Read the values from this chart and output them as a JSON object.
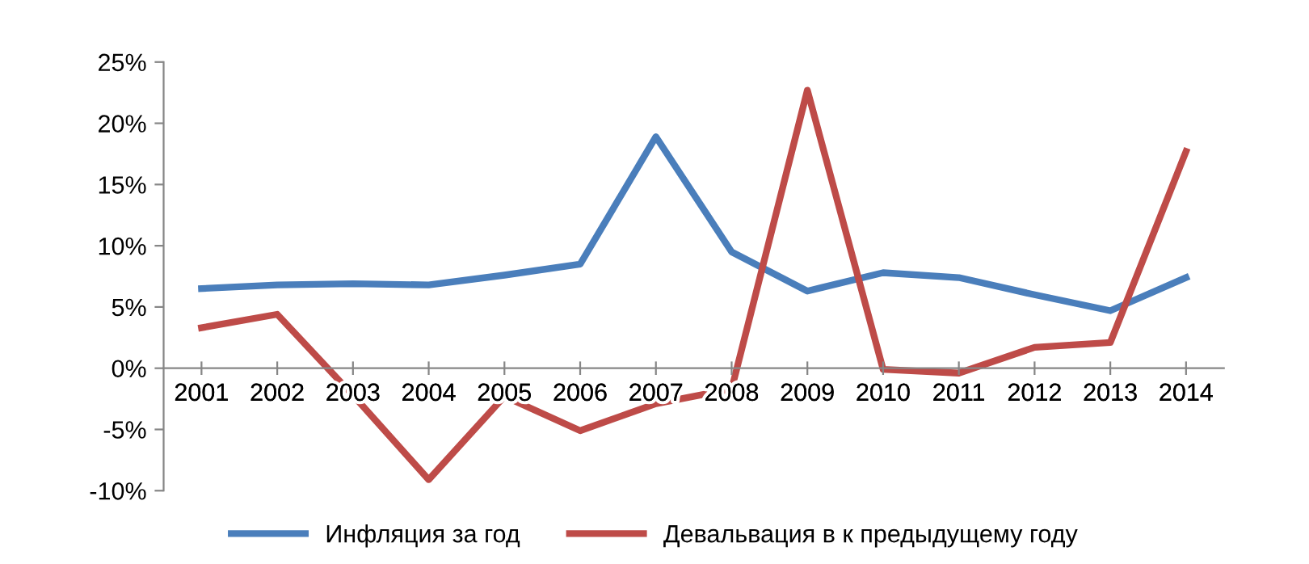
{
  "chart_data": {
    "type": "line",
    "categories": [
      "2001",
      "2002",
      "2003",
      "2004",
      "2005",
      "2006",
      "2007",
      "2008",
      "2009",
      "2010",
      "2011",
      "2012",
      "2013",
      "2014"
    ],
    "series": [
      {
        "name": "Инфляция за год",
        "color": "#4a7ebb",
        "values": [
          6.5,
          6.8,
          6.9,
          6.8,
          7.6,
          8.5,
          18.9,
          9.5,
          6.3,
          7.8,
          7.4,
          6.0,
          4.7,
          7.4
        ]
      },
      {
        "name": "Девальвация в к предыдущему году",
        "color": "#be4b48",
        "values": [
          3.3,
          4.4,
          -2.2,
          -9.1,
          -2.3,
          -5.1,
          -2.9,
          -1.7,
          22.7,
          -0.1,
          -0.4,
          1.7,
          2.1,
          17.7
        ]
      }
    ],
    "ylim": [
      -10,
      25
    ],
    "yticks": [
      {
        "value": -10,
        "label": "-10%"
      },
      {
        "value": -5,
        "label": "-5%"
      },
      {
        "value": 0,
        "label": "0%"
      },
      {
        "value": 5,
        "label": "5%"
      },
      {
        "value": 10,
        "label": "10%"
      },
      {
        "value": 15,
        "label": "15%"
      },
      {
        "value": 20,
        "label": "20%"
      },
      {
        "value": 25,
        "label": "25%"
      }
    ],
    "grid": false,
    "legend": "bottom",
    "marker": "none",
    "line_style": "solid"
  }
}
